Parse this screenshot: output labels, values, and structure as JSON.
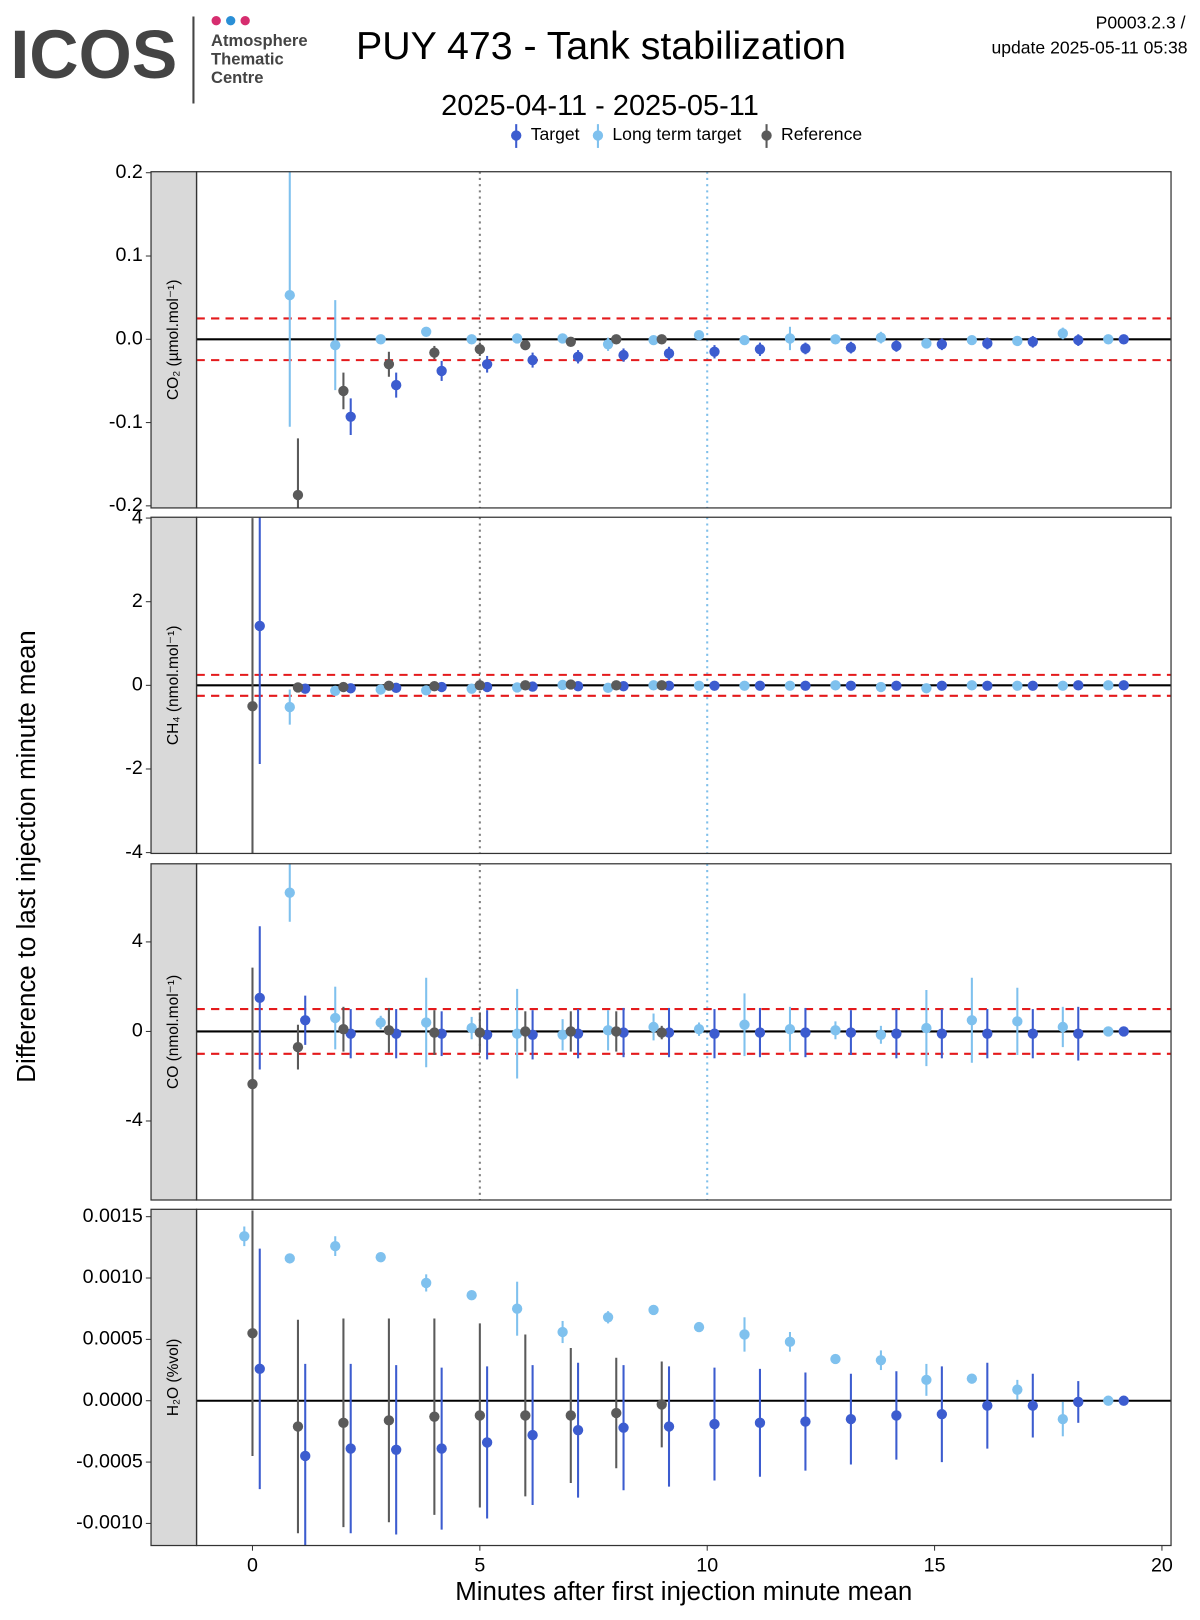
{
  "header": {
    "logo": "ICOS",
    "logo_lines": [
      "Atmosphere",
      "Thematic",
      "Centre"
    ],
    "title": "PUY 473 - Tank stabilization",
    "subtitle": "2025-04-11 - 2025-05-11",
    "version": "P0003.2.3 /",
    "update": "update  2025-05-11 05:38"
  },
  "y_title": "Difference to last injection minute mean",
  "chart_data": [
    {
      "type": "scatter",
      "strip": "CO₂ (µmol.mol⁻¹)",
      "xlim": [
        -1.23,
        20.2
      ],
      "ylim": [
        -0.2025,
        0.2012
      ],
      "yticks": [
        -0.2,
        -0.1,
        {
          "value": 0,
          "label": "0.0"
        },
        0.1,
        0.2
      ],
      "thresholds": [
        -0.025,
        0.025
      ],
      "vlines": [
        {
          "value": 5,
          "color": "#808080"
        },
        {
          "value": 10,
          "color": "#7fbfea"
        }
      ],
      "series": [
        {
          "name": "Target",
          "color": "#3c5ccf",
          "x": [
            0.16,
            1.16,
            2.16,
            3.16,
            4.16,
            5.16,
            6.16,
            7.16,
            8.16,
            9.16,
            10.16,
            11.16,
            12.16,
            13.16,
            14.16,
            15.16,
            16.16,
            17.16,
            18.16,
            19.16
          ],
          "values": [
            null,
            null,
            -0.093,
            -0.055,
            -0.038,
            -0.03,
            -0.025,
            -0.021,
            -0.019,
            -0.017,
            -0.015,
            -0.012,
            -0.011,
            -0.01,
            -0.008,
            -0.006,
            -0.005,
            -0.003,
            -0.001,
            0.0
          ],
          "errors": [
            null,
            null,
            0.022,
            0.015,
            0.012,
            0.01,
            0.009,
            0.008,
            0.008,
            0.008,
            0.008,
            0.008,
            0.007,
            0.007,
            0.007,
            0.007,
            0.007,
            0.007,
            0.007,
            0.002
          ]
        },
        {
          "name": "Long term target",
          "color": "#7fc1ee",
          "x": [
            -0.18,
            0.82,
            1.82,
            2.82,
            3.82,
            4.82,
            5.82,
            6.82,
            7.82,
            8.82,
            9.82,
            10.82,
            11.82,
            12.82,
            13.82,
            14.82,
            15.82,
            16.82,
            17.82,
            18.82
          ],
          "values": [
            null,
            0.053,
            -0.007,
            0.0,
            0.009,
            0.0,
            0.001,
            0.001,
            -0.006,
            -0.001,
            0.005,
            -0.001,
            0.001,
            0.0,
            0.002,
            -0.005,
            -0.001,
            -0.002,
            0.007,
            0.0
          ],
          "errors": [
            null,
            0.158,
            0.054,
            0.003,
            0.003,
            0.002,
            0.002,
            0.005,
            0.008,
            0.003,
            0.002,
            0.005,
            0.014,
            0.002,
            0.007,
            0.004,
            0.003,
            0.003,
            0.007,
            0.001
          ]
        },
        {
          "name": "Reference",
          "color": "#5a5a5a",
          "x": [
            0,
            1,
            2,
            3,
            4,
            5,
            6,
            7,
            8,
            9
          ],
          "values": [
            null,
            -0.187,
            -0.062,
            -0.03,
            -0.016,
            -0.012,
            -0.007,
            -0.003,
            0.0,
            0.0
          ],
          "errors": [
            null,
            0.068,
            0.022,
            0.015,
            0.008,
            0.008,
            0.006,
            0.005,
            0.004,
            0.003
          ]
        }
      ]
    },
    {
      "type": "scatter",
      "strip": "CH₄ (nmol.mol⁻¹)",
      "xlim": [
        -1.23,
        20.2
      ],
      "ylim": [
        -4.02,
        4.02
      ],
      "yticks": [
        -4,
        -2,
        0,
        2,
        4
      ],
      "thresholds": [
        -0.25,
        0.25
      ],
      "vlines": [
        {
          "value": 5,
          "color": "#808080"
        },
        {
          "value": 10,
          "color": "#7fbfea"
        }
      ],
      "series": [
        {
          "name": "Target",
          "color": "#3c5ccf",
          "x": [
            0.16,
            1.16,
            2.16,
            3.16,
            4.16,
            5.16,
            6.16,
            7.16,
            8.16,
            9.16,
            10.16,
            11.16,
            12.16,
            13.16,
            14.16,
            15.16,
            16.16,
            17.16,
            18.16,
            19.16
          ],
          "values": [
            1.42,
            -0.08,
            -0.07,
            -0.06,
            -0.04,
            -0.04,
            -0.03,
            -0.02,
            -0.02,
            -0.01,
            -0.01,
            -0.01,
            -0.01,
            -0.01,
            -0.01,
            -0.01,
            -0.01,
            -0.01,
            0.0,
            0.0
          ],
          "errors": [
            3.3,
            0.05,
            0.05,
            0.05,
            0.05,
            0.05,
            0.05,
            0.05,
            0.05,
            0.05,
            0.05,
            0.05,
            0.05,
            0.05,
            0.05,
            0.05,
            0.05,
            0.05,
            0.05,
            0.02
          ]
        },
        {
          "name": "Long term target",
          "color": "#7fc1ee",
          "x": [
            -0.18,
            0.82,
            1.82,
            2.82,
            3.82,
            4.82,
            5.82,
            6.82,
            7.82,
            8.82,
            9.82,
            10.82,
            11.82,
            12.82,
            13.82,
            14.82,
            15.82,
            16.82,
            17.82,
            18.82
          ],
          "values": [
            null,
            -0.52,
            -0.13,
            -0.1,
            -0.12,
            -0.08,
            -0.05,
            0.01,
            -0.06,
            0.0,
            -0.01,
            -0.01,
            -0.01,
            0.0,
            -0.04,
            -0.07,
            0.0,
            -0.01,
            -0.01,
            0.0
          ],
          "errors": [
            null,
            0.42,
            0.08,
            0.06,
            0.06,
            0.05,
            0.05,
            0.05,
            0.06,
            0.05,
            0.04,
            0.04,
            0.04,
            0.04,
            0.04,
            0.05,
            0.04,
            0.04,
            0.04,
            0.02
          ]
        },
        {
          "name": "Reference",
          "color": "#5a5a5a",
          "x": [
            0,
            1,
            2,
            3,
            4,
            5,
            6,
            7,
            8,
            9
          ],
          "values": [
            -0.5,
            -0.05,
            -0.04,
            -0.01,
            -0.02,
            0.0,
            0.0,
            0.02,
            0.0,
            0.0
          ],
          "errors": [
            4.5,
            0.05,
            0.05,
            0.05,
            0.05,
            0.05,
            0.05,
            0.05,
            0.05,
            0.04
          ]
        }
      ]
    },
    {
      "type": "scatter",
      "strip": "CO (nmol.mol⁻¹)",
      "xlim": [
        -1.23,
        20.2
      ],
      "ylim": [
        -7.53,
        7.49
      ],
      "yticks": [
        -4,
        0,
        4
      ],
      "thresholds": [
        -1,
        1
      ],
      "vlines": [
        {
          "value": 5,
          "color": "#808080"
        },
        {
          "value": 10,
          "color": "#7fbfea"
        }
      ],
      "series": [
        {
          "name": "Target",
          "color": "#3c5ccf",
          "x": [
            0.16,
            1.16,
            2.16,
            3.16,
            4.16,
            5.16,
            6.16,
            7.16,
            8.16,
            9.16,
            10.16,
            11.16,
            12.16,
            13.16,
            14.16,
            15.16,
            16.16,
            17.16,
            18.16,
            19.16
          ],
          "values": [
            1.5,
            0.5,
            -0.1,
            -0.1,
            -0.1,
            -0.15,
            -0.15,
            -0.1,
            -0.05,
            -0.05,
            -0.1,
            -0.05,
            -0.05,
            -0.05,
            -0.1,
            -0.1,
            -0.1,
            -0.1,
            -0.1,
            0.0
          ],
          "errors": [
            3.2,
            1.1,
            1.1,
            1.1,
            1.0,
            1.1,
            1.1,
            1.1,
            1.1,
            1.1,
            1.1,
            1.1,
            1.1,
            1.0,
            1.1,
            1.1,
            1.1,
            1.1,
            1.2,
            0.1
          ]
        },
        {
          "name": "Long term target",
          "color": "#7fc1ee",
          "x": [
            -0.18,
            0.82,
            1.82,
            2.82,
            3.82,
            4.82,
            5.82,
            6.82,
            7.82,
            8.82,
            9.82,
            10.82,
            11.82,
            12.82,
            13.82,
            14.82,
            15.82,
            16.82,
            17.82,
            18.82
          ],
          "values": [
            null,
            6.2,
            0.6,
            0.4,
            0.4,
            0.15,
            -0.1,
            -0.15,
            0.05,
            0.2,
            0.1,
            0.3,
            0.1,
            0.05,
            -0.15,
            0.15,
            0.5,
            0.45,
            0.2,
            0.0
          ],
          "errors": [
            null,
            1.3,
            1.4,
            0.3,
            2.0,
            0.5,
            2.0,
            0.7,
            0.9,
            0.6,
            0.3,
            1.4,
            1.0,
            0.4,
            0.4,
            1.7,
            1.9,
            1.5,
            0.9,
            0.1
          ]
        },
        {
          "name": "Reference",
          "color": "#5a5a5a",
          "x": [
            0,
            1,
            2,
            3,
            4,
            5,
            6,
            7,
            8,
            9
          ],
          "values": [
            -2.35,
            -0.7,
            0.1,
            0.05,
            -0.05,
            -0.05,
            0.0,
            0.0,
            0.0,
            -0.05
          ],
          "errors": [
            5.2,
            1.0,
            1.0,
            1.0,
            1.0,
            0.9,
            0.9,
            0.9,
            0.9,
            0.3
          ]
        }
      ]
    },
    {
      "type": "scatter",
      "strip": "H₂O (%vol)",
      "xlim": [
        -1.23,
        20.2
      ],
      "ylim": [
        -0.00118,
        0.00156
      ],
      "yticks": [
        {
          "value": -0.001,
          "label": "-0.0010"
        },
        {
          "value": -0.0005,
          "label": "-0.0005"
        },
        {
          "value": 0,
          "label": "0.0000"
        },
        {
          "value": 0.0005,
          "label": "0.0005"
        },
        {
          "value": 0.001,
          "label": "0.0010"
        },
        {
          "value": 0.0015,
          "label": "0.0015"
        }
      ],
      "xticks": [
        0,
        5,
        10,
        15,
        20
      ],
      "xlabel": "Minutes after first injection minute mean",
      "series": [
        {
          "name": "Target",
          "color": "#3c5ccf",
          "x": [
            0.16,
            1.16,
            2.16,
            3.16,
            4.16,
            5.16,
            6.16,
            7.16,
            8.16,
            9.16,
            10.16,
            11.16,
            12.16,
            13.16,
            14.16,
            15.16,
            16.16,
            17.16,
            18.16,
            19.16
          ],
          "values": [
            0.00026,
            -0.00045,
            -0.00039,
            -0.0004,
            -0.00039,
            -0.00034,
            -0.00028,
            -0.00024,
            -0.00022,
            -0.00021,
            -0.00019,
            -0.00018,
            -0.00017,
            -0.00015,
            -0.00012,
            -0.00011,
            -4e-05,
            -4e-05,
            -1e-05,
            0.0
          ],
          "errors": [
            0.00098,
            0.00075,
            0.00069,
            0.00069,
            0.00066,
            0.00062,
            0.00057,
            0.00055,
            0.00051,
            0.00049,
            0.00046,
            0.00044,
            0.0004,
            0.00037,
            0.00036,
            0.00039,
            0.00035,
            0.00026,
            0.00017,
            1e-05
          ]
        },
        {
          "name": "Long term target",
          "color": "#7fc1ee",
          "x": [
            -0.18,
            0.82,
            1.82,
            2.82,
            3.82,
            4.82,
            5.82,
            6.82,
            7.82,
            8.82,
            9.82,
            10.82,
            11.82,
            12.82,
            13.82,
            14.82,
            15.82,
            16.82,
            17.82,
            18.82
          ],
          "values": [
            0.00134,
            0.00116,
            0.00126,
            0.00117,
            0.00096,
            0.00086,
            0.00075,
            0.00056,
            0.00068,
            0.00074,
            0.0006,
            0.00054,
            0.00048,
            0.00034,
            0.00033,
            0.00017,
            0.00018,
            9e-05,
            -0.00015,
            0.0
          ],
          "errors": [
            8e-05,
            2e-05,
            8e-05,
            2e-05,
            7e-05,
            2e-05,
            0.00022,
            9e-05,
            5e-05,
            4e-05,
            2e-05,
            0.00014,
            8e-05,
            3e-05,
            8e-05,
            0.00013,
            2e-05,
            8e-05,
            0.00014,
            1e-05
          ]
        },
        {
          "name": "Reference",
          "color": "#5a5a5a",
          "x": [
            0,
            1,
            2,
            3,
            4,
            5,
            6,
            7,
            8,
            9
          ],
          "values": [
            0.00055,
            -0.00021,
            -0.00018,
            -0.00016,
            -0.00013,
            -0.00012,
            -0.00012,
            -0.00012,
            -0.0001,
            -3e-05
          ],
          "errors": [
            0.001,
            0.00087,
            0.00085,
            0.00083,
            0.0008,
            0.00075,
            0.00066,
            0.00055,
            0.00045,
            0.00035
          ]
        }
      ]
    }
  ]
}
